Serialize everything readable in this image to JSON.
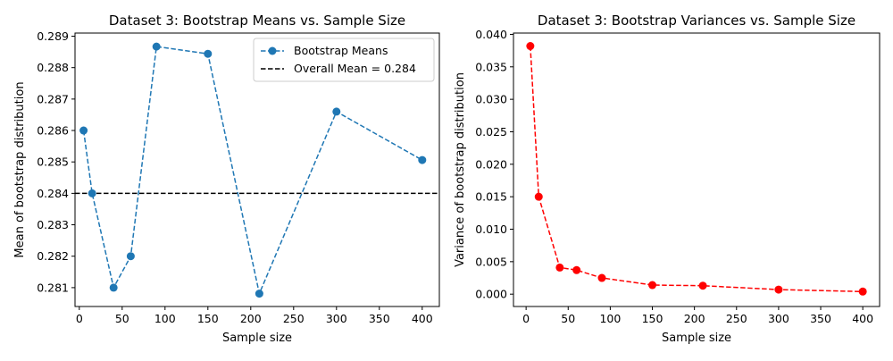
{
  "chart_data": [
    {
      "type": "line",
      "title": "Dataset 3: Bootstrap Means vs. Sample Size",
      "xlabel": "Sample size",
      "ylabel": "Mean of bootstrap distribution",
      "xlim": [
        -5,
        420
      ],
      "ylim": [
        0.2804,
        0.2891
      ],
      "xticks": [
        0,
        50,
        100,
        150,
        200,
        250,
        300,
        350,
        400
      ],
      "yticks": [
        0.281,
        0.282,
        0.283,
        0.284,
        0.285,
        0.286,
        0.287,
        0.288,
        0.289
      ],
      "ytick_decimals": 3,
      "legend_position": "top-right",
      "series": [
        {
          "name": "Bootstrap Means",
          "color": "#1f77b4",
          "linestyle": "dashed",
          "marker": "circle",
          "x": [
            5,
            15,
            40,
            60,
            90,
            150,
            210,
            300,
            400
          ],
          "y": [
            0.286,
            0.284,
            0.281,
            0.282,
            0.28867,
            0.28844,
            0.28081,
            0.2866,
            0.28506
          ]
        }
      ],
      "reference_lines": [
        {
          "name": "Overall Mean = 0.284",
          "y": 0.284,
          "color": "#000000",
          "linestyle": "dashed"
        }
      ]
    },
    {
      "type": "line",
      "title": "Dataset 3: Bootstrap Variances vs. Sample Size",
      "xlabel": "Sample size",
      "ylabel": "Variance of bootstrap distribution",
      "xlim": [
        -15,
        420
      ],
      "ylim": [
        -0.0019,
        0.0402
      ],
      "xticks": [
        0,
        50,
        100,
        150,
        200,
        250,
        300,
        350,
        400
      ],
      "yticks": [
        0.0,
        0.005,
        0.01,
        0.015,
        0.02,
        0.025,
        0.03,
        0.035,
        0.04
      ],
      "ytick_decimals": 3,
      "series": [
        {
          "color": "#ff0000",
          "linestyle": "dashed",
          "marker": "circle",
          "x": [
            5,
            15,
            40,
            60,
            90,
            150,
            210,
            300,
            400
          ],
          "y": [
            0.0382,
            0.015,
            0.0041,
            0.0037,
            0.0025,
            0.0014,
            0.0013,
            0.0007,
            0.0004
          ]
        }
      ]
    }
  ]
}
